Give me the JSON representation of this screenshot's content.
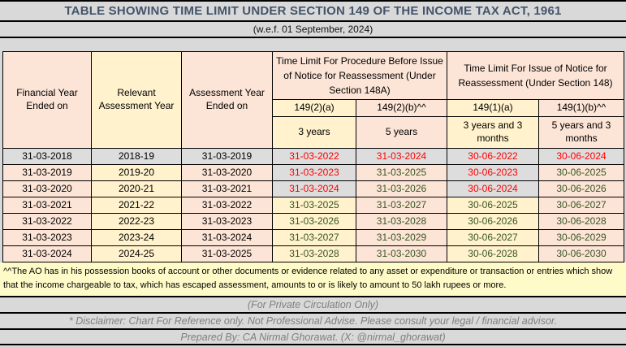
{
  "title": "TABLE SHOWING TIME LIMIT UNDER SECTION 149 OF THE INCOME TAX ACT, 1961",
  "subtitle": "(w.e.f. 01 September, 2024)",
  "colors": {
    "page_bg": "#D9D9D9",
    "title_text": "#44546A",
    "pink": "#FCE4D6",
    "yellow": "#FFF2CC",
    "gray_cell": "#DDDDDD",
    "note_bg": "#FFFBC8",
    "red_text": "#FF0000",
    "green_text": "#375623",
    "footer_text": "#7F7F7F",
    "border": "#000000"
  },
  "table": {
    "headers": {
      "financial_year": "Financial Year Ended on",
      "relevant_assessment_year": "Relevant Assessment Year",
      "assessment_year_ended": "Assessment Year Ended on",
      "group_148a": "Time Limit For Procedure Before Issue of Notice for Reassessment (Under Section 148A)",
      "group_148": "Time Limit For Issue of Notice for Reassessment (Under Section 148)",
      "sub": [
        "149(2)(a)",
        "149(2)(b)^^",
        "149(1)(a)",
        "149(1)(b)^^"
      ],
      "periods": [
        "3 years",
        "5 years",
        "3 years and 3 months",
        "5 years and 3 months"
      ]
    },
    "rows": [
      [
        {
          "t": "31-03-2018",
          "bg": "gray",
          "fg": "black"
        },
        {
          "t": "2018-19",
          "bg": "gray",
          "fg": "black"
        },
        {
          "t": "31-03-2019",
          "bg": "gray",
          "fg": "black"
        },
        {
          "t": "31-03-2022",
          "bg": "gray",
          "fg": "red"
        },
        {
          "t": "31-03-2024",
          "bg": "gray",
          "fg": "red"
        },
        {
          "t": "30-06-2022",
          "bg": "gray",
          "fg": "red"
        },
        {
          "t": "30-06-2024",
          "bg": "gray",
          "fg": "red"
        }
      ],
      [
        {
          "t": "31-03-2019",
          "bg": "pink",
          "fg": "black"
        },
        {
          "t": "2019-20",
          "bg": "yellow",
          "fg": "black"
        },
        {
          "t": "31-03-2020",
          "bg": "pink",
          "fg": "black"
        },
        {
          "t": "31-03-2023",
          "bg": "gray",
          "fg": "red"
        },
        {
          "t": "31-03-2025",
          "bg": "pink",
          "fg": "green"
        },
        {
          "t": "30-06-2023",
          "bg": "gray",
          "fg": "red"
        },
        {
          "t": "30-06-2025",
          "bg": "pink",
          "fg": "green"
        }
      ],
      [
        {
          "t": "31-03-2020",
          "bg": "pink",
          "fg": "black"
        },
        {
          "t": "2020-21",
          "bg": "yellow",
          "fg": "black"
        },
        {
          "t": "31-03-2021",
          "bg": "pink",
          "fg": "black"
        },
        {
          "t": "31-03-2024",
          "bg": "gray",
          "fg": "red"
        },
        {
          "t": "31-03-2026",
          "bg": "pink",
          "fg": "green"
        },
        {
          "t": "30-06-2024",
          "bg": "gray",
          "fg": "red"
        },
        {
          "t": "30-06-2026",
          "bg": "pink",
          "fg": "green"
        }
      ],
      [
        {
          "t": "31-03-2021",
          "bg": "pink",
          "fg": "black"
        },
        {
          "t": "2021-22",
          "bg": "yellow",
          "fg": "black"
        },
        {
          "t": "31-03-2022",
          "bg": "pink",
          "fg": "black"
        },
        {
          "t": "31-03-2025",
          "bg": "yellow",
          "fg": "green"
        },
        {
          "t": "31-03-2027",
          "bg": "pink",
          "fg": "green"
        },
        {
          "t": "30-06-2025",
          "bg": "yellow",
          "fg": "green"
        },
        {
          "t": "30-06-2027",
          "bg": "pink",
          "fg": "green"
        }
      ],
      [
        {
          "t": "31-03-2022",
          "bg": "pink",
          "fg": "black"
        },
        {
          "t": "2022-23",
          "bg": "yellow",
          "fg": "black"
        },
        {
          "t": "31-03-2023",
          "bg": "pink",
          "fg": "black"
        },
        {
          "t": "31-03-2026",
          "bg": "yellow",
          "fg": "green"
        },
        {
          "t": "31-03-2028",
          "bg": "pink",
          "fg": "green"
        },
        {
          "t": "30-06-2026",
          "bg": "yellow",
          "fg": "green"
        },
        {
          "t": "30-06-2028",
          "bg": "pink",
          "fg": "green"
        }
      ],
      [
        {
          "t": "31-03-2023",
          "bg": "pink",
          "fg": "black"
        },
        {
          "t": "2023-24",
          "bg": "yellow",
          "fg": "black"
        },
        {
          "t": "31-03-2024",
          "bg": "pink",
          "fg": "black"
        },
        {
          "t": "31-03-2027",
          "bg": "yellow",
          "fg": "green"
        },
        {
          "t": "31-03-2029",
          "bg": "pink",
          "fg": "green"
        },
        {
          "t": "30-06-2027",
          "bg": "yellow",
          "fg": "green"
        },
        {
          "t": "30-06-2029",
          "bg": "pink",
          "fg": "green"
        }
      ],
      [
        {
          "t": "31-03-2024",
          "bg": "pink",
          "fg": "black"
        },
        {
          "t": "2024-25",
          "bg": "yellow",
          "fg": "black"
        },
        {
          "t": "31-03-2025",
          "bg": "pink",
          "fg": "black"
        },
        {
          "t": "31-03-2028",
          "bg": "yellow",
          "fg": "green"
        },
        {
          "t": "31-03-2030",
          "bg": "pink",
          "fg": "green"
        },
        {
          "t": "30-06-2028",
          "bg": "yellow",
          "fg": "green"
        },
        {
          "t": "30-06-2030",
          "bg": "pink",
          "fg": "green"
        }
      ]
    ]
  },
  "footnote": "^^The AO has in his possession books of account or other documents or evidence related to any asset or expenditure or transaction or entries which show that the income chargeable to tax, which has escaped assessment, amounts to or is likely to amount to 50 lakh rupees or more.",
  "footer": {
    "circulation": "(For Private Circulation Only)",
    "disclaimer": "* Disclaimer: Chart For Reference only. Not Professional Advise. Please consult your legal / financial advisor.",
    "prepared_by": "Prepared By: CA Nirmal Ghorawat. (X: @nirmal_ghorawat)"
  }
}
